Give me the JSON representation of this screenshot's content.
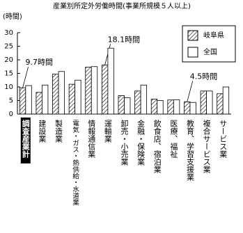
{
  "chart_data": {
    "type": "bar",
    "title": "産業別所定外労働時間(事業所規模５人以上)",
    "y_label": "(時間)",
    "categories": [
      "調査産業計",
      "建設業",
      "製造業",
      "電気・ガス・熱供給・水道業",
      "情報通信業",
      "運輸業",
      "卸売・小売業",
      "金融・保険業",
      "飲食店、宿泊業",
      "医療、福祉",
      "教育、学習支援業",
      "複合サービス業",
      "サービス業"
    ],
    "series": [
      {
        "name": "岐阜県",
        "color": "hatch",
        "values": [
          9.7,
          8,
          14.7,
          11,
          17.3,
          18.1,
          6.8,
          8.5,
          5.5,
          5.2,
          4.5,
          8.5,
          7.5
        ],
        "value_labels": [
          "9.7時間",
          null,
          null,
          null,
          null,
          "18.1時間",
          null,
          null,
          null,
          null,
          "4.5時間",
          null,
          null
        ]
      },
      {
        "name": "全国",
        "color": "#ffffff",
        "values": [
          10.5,
          10.7,
          15.7,
          12.5,
          17.5,
          24.3,
          6,
          10.7,
          5,
          5.3,
          4.3,
          8.5,
          10
        ]
      }
    ],
    "ylim": [
      0,
      30
    ],
    "yticks": [
      0,
      5,
      10,
      15,
      20,
      25,
      30
    ],
    "grid": false,
    "legend": "upper right"
  }
}
